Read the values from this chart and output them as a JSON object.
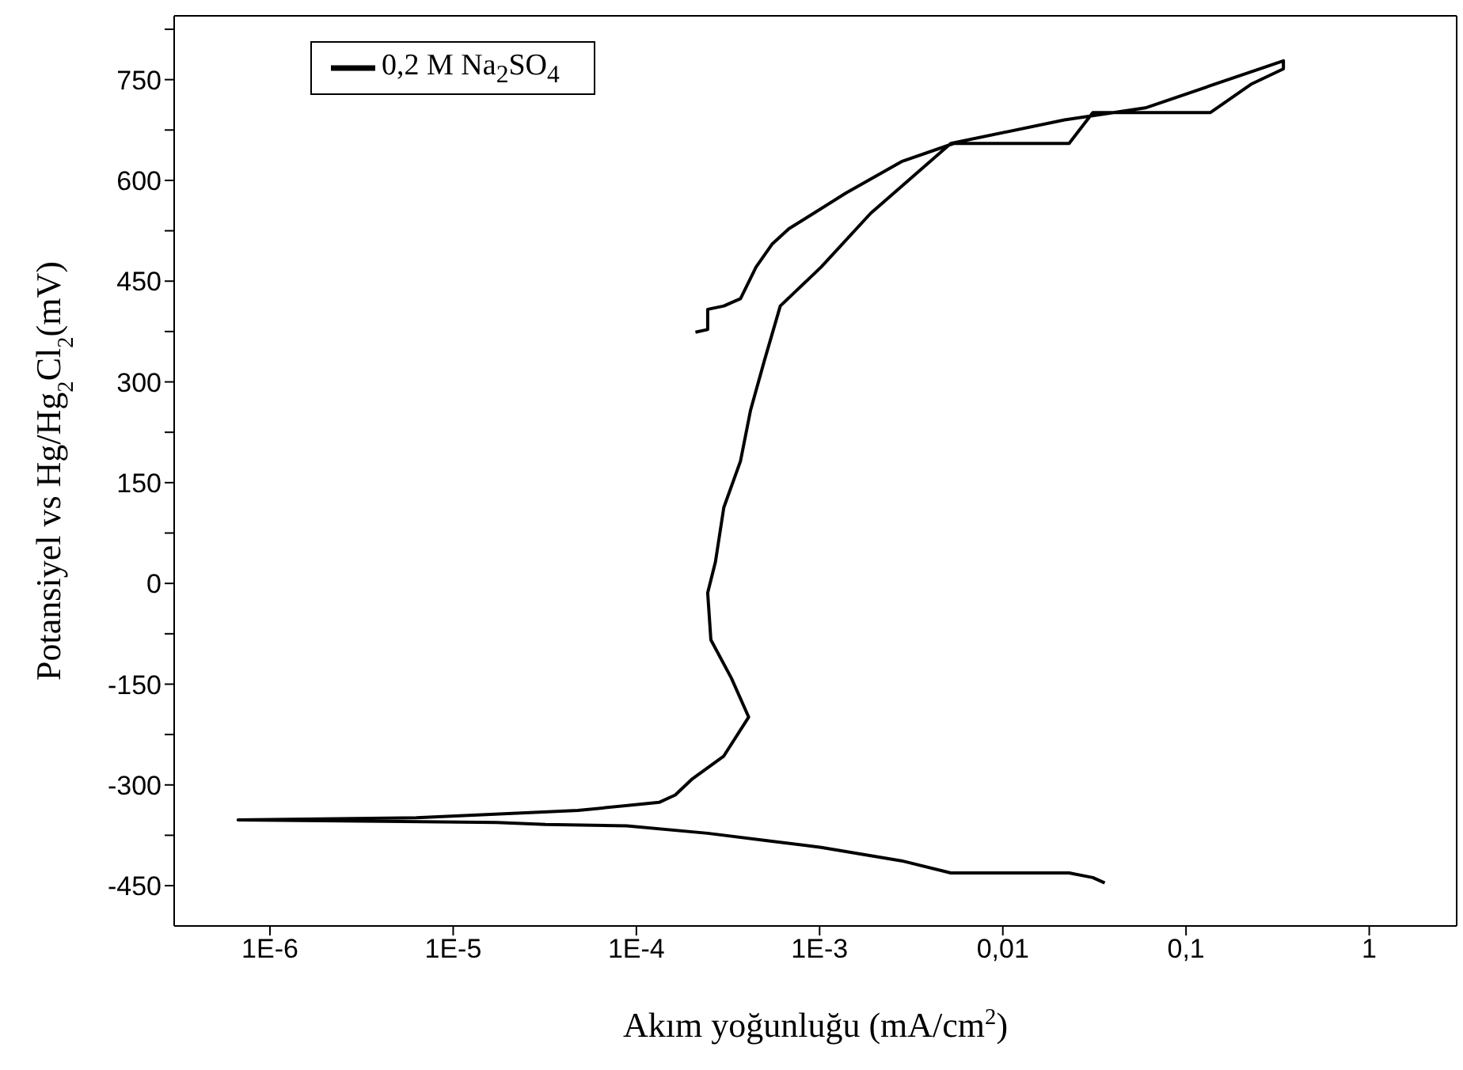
{
  "chart_data": {
    "type": "line",
    "xlabel": "Akım yoğunluğu (mA/cm$^{2}$)",
    "ylabel": "Potansiyel vs Hg/Hg$_{2}$Cl$_{2}$(mV)",
    "log": "x",
    "legend": "top left",
    "marker": "none",
    "line_style": "solid",
    "grid": false,
    "xlim": [
      3e-07,
      3
    ],
    "xticks": [
      {
        "value": 1e-06,
        "label": "1E-6"
      },
      {
        "value": 1e-05,
        "label": "1E-5"
      },
      {
        "value": 0.0001,
        "label": "1E-4"
      },
      {
        "value": 0.001,
        "label": "1E-3"
      },
      {
        "value": 0.01,
        "label": "0,01"
      },
      {
        "value": 0.1,
        "label": "0,1"
      },
      1
    ],
    "ylim": [
      -510,
      845
    ],
    "yticks": [
      -450,
      {
        "value": -375,
        "label": null
      },
      -300,
      {
        "value": -225,
        "label": null
      },
      -150,
      {
        "value": -75,
        "label": null
      },
      0,
      {
        "value": 75,
        "label": null
      },
      150,
      {
        "value": 225,
        "label": null
      },
      300,
      {
        "value": 375,
        "label": null
      },
      450,
      {
        "value": 525,
        "label": null
      },
      600,
      {
        "value": 675,
        "label": null
      },
      750,
      {
        "value": 825,
        "label": null
      }
    ],
    "series": [
      {
        "name": "0,2 M Na$_{2}$SO$_{4}$",
        "color": "#000000",
        "x": [
          0.036,
          0.031,
          0.023,
          0.0052,
          0.0028,
          0.00102,
          0.00055,
          0.000245,
          8.85e-05,
          3.19e-05,
          1.73e-05,
          6.7e-07,
          6.3e-06,
          4.8e-05,
          0.000133,
          0.000163,
          0.0002,
          0.0003,
          0.00041,
          0.00033,
          0.000255,
          0.000245,
          0.00027,
          0.0003,
          0.00037,
          0.00042,
          0.0005,
          0.00061,
          0.00102,
          0.0019,
          0.0052,
          0.0217,
          0.06,
          0.34,
          0.34,
          0.226,
          0.136,
          0.031,
          0.023,
          0.0054,
          0.0028,
          0.00139,
          0.00068,
          0.00055,
          0.00045,
          0.00037,
          0.0003,
          0.000245,
          0.000245,
          0.00021
        ],
        "values": [
          -446,
          -438,
          -431,
          -431,
          -413,
          -393,
          -384,
          -372,
          -361,
          -359,
          -356,
          -352,
          -349,
          -338,
          -326,
          -315,
          -292,
          -257,
          -199,
          -141,
          -84,
          -14,
          32,
          113,
          182,
          258,
          332,
          413,
          471,
          551,
          655,
          690,
          708,
          778,
          766,
          743,
          701,
          701,
          655,
          655,
          628,
          581,
          528,
          505,
          471,
          424,
          413,
          408,
          378,
          374
        ]
      }
    ]
  }
}
